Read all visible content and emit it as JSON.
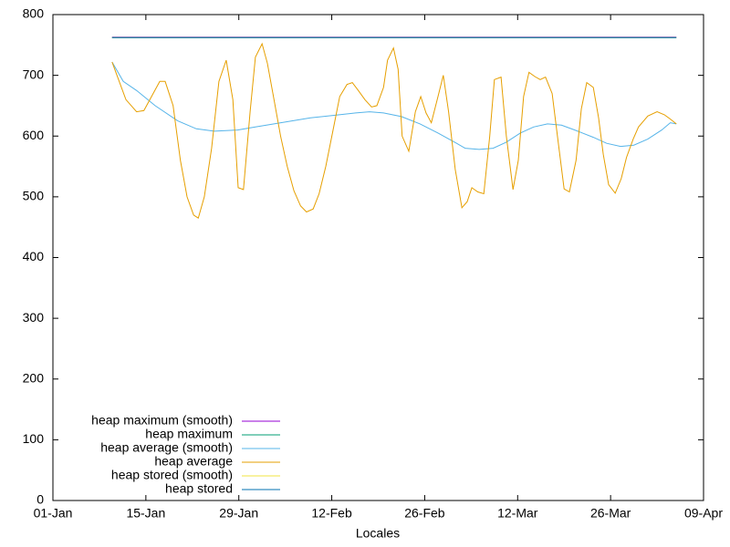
{
  "chart_data": {
    "type": "line",
    "xlabel": "Locales",
    "xlim": [
      0,
      98
    ],
    "ylim": [
      0,
      800
    ],
    "xticks": [
      {
        "value": 0,
        "label": "01-Jan"
      },
      {
        "value": 14,
        "label": "15-Jan"
      },
      {
        "value": 28,
        "label": "29-Jan"
      },
      {
        "value": 42,
        "label": "12-Feb"
      },
      {
        "value": 56,
        "label": "26-Feb"
      },
      {
        "value": 70,
        "label": "12-Mar"
      },
      {
        "value": 84,
        "label": "26-Mar"
      },
      {
        "value": 98,
        "label": "09-Apr"
      }
    ],
    "yticks": [
      0,
      100,
      200,
      300,
      400,
      500,
      600,
      700,
      800
    ],
    "grid": false,
    "legend": "bottom left",
    "series": [
      {
        "name": "heap maximum (smooth)",
        "color": "#9400d3",
        "x": [
          8.9,
          93.9
        ],
        "values": [
          763,
          763
        ]
      },
      {
        "name": "heap maximum",
        "color": "#009e73",
        "x": [
          8.9,
          93.9
        ],
        "values": [
          762,
          762
        ]
      },
      {
        "name": "heap average (smooth)",
        "color": "#56b4e9",
        "x": [
          8.9,
          10.6,
          12.6,
          15.4,
          18.8,
          21.6,
          24.3,
          27.8,
          30.5,
          33.3,
          36,
          38.8,
          42.2,
          45.6,
          47.7,
          49.8,
          52.5,
          55.3,
          58,
          60.8,
          62.1,
          64.2,
          66.3,
          68.3,
          70.4,
          72.4,
          74.5,
          76.6,
          78.6,
          81.4,
          83.4,
          85.5,
          87.5,
          89.6,
          91.7,
          93,
          93.9
        ],
        "values": [
          722,
          690,
          675,
          650,
          625,
          612,
          608,
          610,
          615,
          620,
          625,
          630,
          634,
          638,
          640,
          638,
          632,
          620,
          605,
          588,
          580,
          578,
          580,
          590,
          605,
          615,
          620,
          618,
          610,
          598,
          588,
          583,
          585,
          595,
          610,
          622,
          620
        ]
      },
      {
        "name": "heap average",
        "color": "#e69f00",
        "x": [
          8.9,
          11,
          12.6,
          13.7,
          16.1,
          16.9,
          18.1,
          19.2,
          20.2,
          21.2,
          21.9,
          22.8,
          23.9,
          25,
          26.1,
          27.1,
          27.9,
          28.7,
          29.7,
          30.5,
          31.5,
          32.3,
          33.3,
          34.3,
          35.3,
          36.3,
          37.3,
          38.2,
          39.2,
          40.1,
          41.1,
          42.2,
          43.2,
          44.3,
          45.1,
          46,
          47,
          48,
          48.8,
          49.8,
          50.4,
          51.3,
          52,
          52.6,
          53.6,
          54.6,
          55.4,
          56.2,
          57,
          58,
          58.8,
          59.6,
          60.6,
          61.6,
          62.4,
          63.1,
          64,
          64.9,
          65.8,
          66.5,
          67.5,
          68.3,
          69.3,
          70.1,
          70.9,
          71.7,
          72.6,
          73.4,
          74.2,
          75.2,
          76,
          77,
          77.8,
          78.8,
          79.6,
          80.4,
          81.4,
          82.2,
          82.9,
          83.7,
          84.7,
          85.6,
          86.4,
          87.4,
          88.2,
          89.6,
          91,
          92.1,
          93,
          93.9
        ],
        "values": [
          722,
          660,
          640,
          642,
          690,
          690,
          650,
          560,
          500,
          470,
          465,
          500,
          580,
          690,
          725,
          660,
          515,
          512,
          640,
          730,
          752,
          720,
          660,
          600,
          550,
          510,
          485,
          475,
          480,
          505,
          550,
          610,
          665,
          685,
          688,
          675,
          660,
          648,
          650,
          680,
          725,
          745,
          710,
          600,
          575,
          640,
          665,
          638,
          622,
          665,
          700,
          640,
          545,
          482,
          492,
          515,
          508,
          505,
          600,
          693,
          697,
          600,
          512,
          560,
          665,
          705,
          698,
          693,
          697,
          670,
          600,
          513,
          508,
          560,
          645,
          688,
          680,
          630,
          570,
          520,
          506,
          530,
          565,
          595,
          615,
          633,
          640,
          635,
          628,
          620
        ]
      },
      {
        "name": "heap stored (smooth)",
        "color": "#f0e442",
        "x": [
          8.9,
          93.9
        ],
        "values": [
          762,
          762
        ]
      },
      {
        "name": "heap stored",
        "color": "#0072b2",
        "x": [
          8.9,
          93.9
        ],
        "values": [
          762,
          762
        ]
      }
    ]
  }
}
